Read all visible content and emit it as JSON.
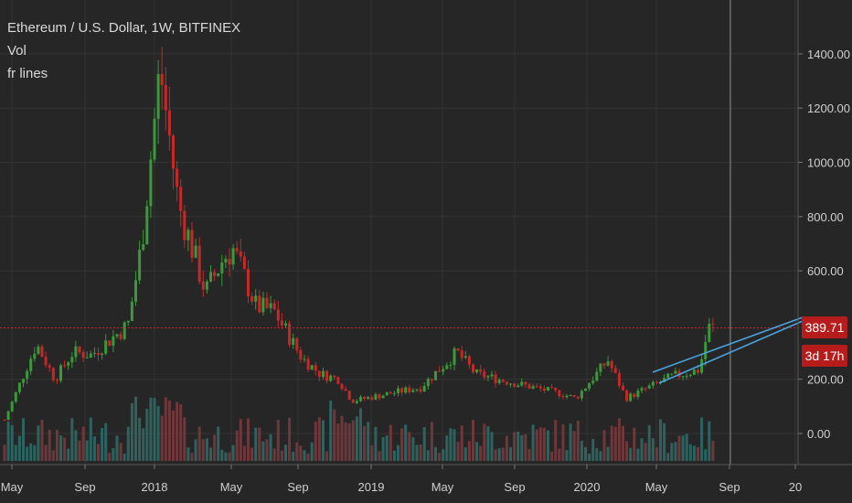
{
  "legend": {
    "title": "Ethereum / U.S. Dollar, 1W, BITFINEX",
    "line2": "Vol",
    "line3": "fr lines"
  },
  "price_label": "389.71",
  "countdown_label": "3d 17h",
  "colors": {
    "background": "#262626",
    "up": "#3a9a3a",
    "down": "#c62828",
    "vol_up": "#2f6f6a",
    "vol_down": "#7a3b3f",
    "trendline": "#4aa3df",
    "price_line": "#c62828",
    "grid": "#333333"
  },
  "chart_data": {
    "type": "candlestick",
    "title": "Ethereum / U.S. Dollar, 1W, BITFINEX",
    "y_ticks": [
      "1400.00",
      "1200.00",
      "1000.00",
      "800.00",
      "600.00",
      "200.00",
      "0.00"
    ],
    "x_ticks": [
      "May",
      "Sep",
      "2018",
      "May",
      "Sep",
      "2019",
      "May",
      "Sep",
      "2020",
      "May",
      "Sep",
      "20"
    ],
    "ylim": [
      -100,
      1450
    ],
    "current_price": 389.71,
    "grid": true,
    "close_series_approx": [
      {
        "t": "2017-04",
        "close": 50
      },
      {
        "t": "2017-06",
        "close": 330
      },
      {
        "t": "2017-07",
        "close": 200
      },
      {
        "t": "2017-08",
        "close": 300
      },
      {
        "t": "2017-09",
        "close": 290
      },
      {
        "t": "2017-11",
        "close": 400
      },
      {
        "t": "2017-12",
        "close": 700
      },
      {
        "t": "2018-01",
        "close": 1350
      },
      {
        "t": "2018-02",
        "close": 850
      },
      {
        "t": "2018-03",
        "close": 520
      },
      {
        "t": "2018-04",
        "close": 650
      },
      {
        "t": "2018-05",
        "close": 680
      },
      {
        "t": "2018-06",
        "close": 470
      },
      {
        "t": "2018-07",
        "close": 450
      },
      {
        "t": "2018-08",
        "close": 280
      },
      {
        "t": "2018-09",
        "close": 220
      },
      {
        "t": "2018-10",
        "close": 200
      },
      {
        "t": "2018-11",
        "close": 120
      },
      {
        "t": "2018-12",
        "close": 130
      },
      {
        "t": "2019-02",
        "close": 150
      },
      {
        "t": "2019-04",
        "close": 170
      },
      {
        "t": "2019-06",
        "close": 300
      },
      {
        "t": "2019-07",
        "close": 220
      },
      {
        "t": "2019-09",
        "close": 180
      },
      {
        "t": "2019-11",
        "close": 150
      },
      {
        "t": "2019-12",
        "close": 130
      },
      {
        "t": "2020-02",
        "close": 270
      },
      {
        "t": "2020-03",
        "close": 130
      },
      {
        "t": "2020-05",
        "close": 210
      },
      {
        "t": "2020-06",
        "close": 235
      },
      {
        "t": "2020-07",
        "close": 390
      }
    ]
  }
}
